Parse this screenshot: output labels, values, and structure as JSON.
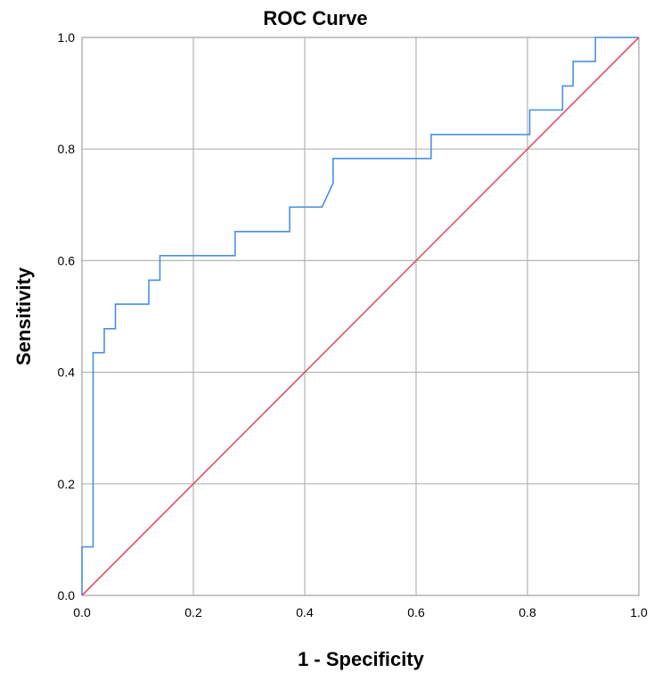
{
  "chart_data": {
    "type": "line",
    "title": "ROC Curve",
    "xlabel": "1 - Specificity",
    "ylabel": "Sensitivity",
    "xlim": [
      0.0,
      1.0
    ],
    "ylim": [
      0.0,
      1.0
    ],
    "x_ticks": [
      "0.0",
      "0.2",
      "0.4",
      "0.6",
      "0.8",
      "1.0"
    ],
    "y_ticks": [
      "0.0",
      "0.2",
      "0.4",
      "0.6",
      "0.8",
      "1.0"
    ],
    "grid": true,
    "legend": "none",
    "series": [
      {
        "color": "#4a90e2",
        "x": [
          0.0,
          0.0,
          0.02,
          0.02,
          0.04,
          0.04,
          0.06,
          0.06,
          0.12,
          0.12,
          0.14,
          0.14,
          0.275,
          0.275,
          0.373,
          0.373,
          0.431,
          0.451,
          0.451,
          0.627,
          0.627,
          0.804,
          0.804,
          0.863,
          0.863,
          0.882,
          0.882,
          0.922,
          0.922,
          1.0
        ],
        "y": [
          0.0,
          0.087,
          0.087,
          0.435,
          0.435,
          0.478,
          0.478,
          0.522,
          0.522,
          0.565,
          0.565,
          0.609,
          0.609,
          0.652,
          0.652,
          0.696,
          0.696,
          0.739,
          0.783,
          0.783,
          0.826,
          0.826,
          0.87,
          0.87,
          0.913,
          0.913,
          0.957,
          0.957,
          1.0,
          1.0
        ]
      },
      {
        "color": "#e0506a",
        "x": [
          0.0,
          1.0
        ],
        "y": [
          0.0,
          1.0
        ]
      }
    ]
  }
}
